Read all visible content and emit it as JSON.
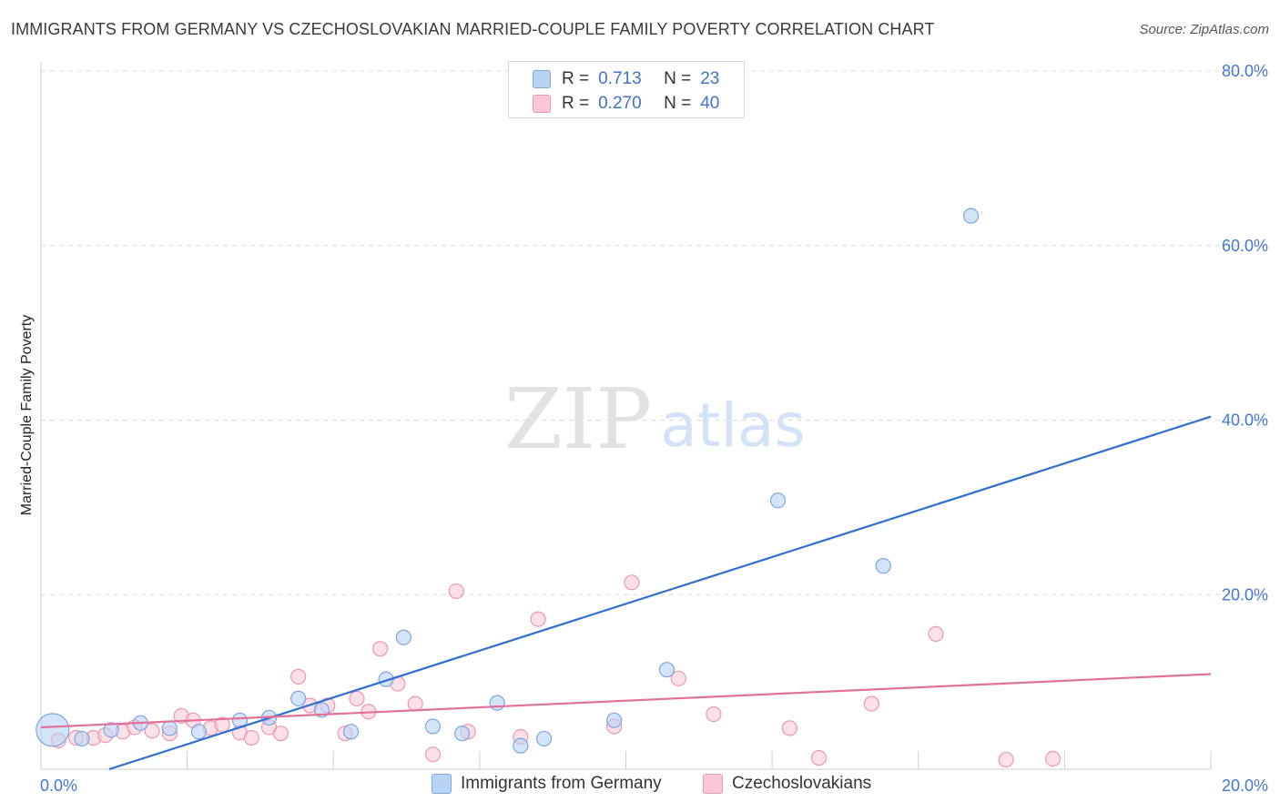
{
  "title": "IMMIGRANTS FROM GERMANY VS CZECHOSLOVAKIAN MARRIED-COUPLE FAMILY POVERTY CORRELATION CHART",
  "source": "Source: ZipAtlas.com",
  "watermark": {
    "zip": "ZIP",
    "atlas": "atlas"
  },
  "legend": {
    "rows": [
      {
        "r_label": "R =",
        "r_value": "0.713",
        "n_label": "N =",
        "n_value": "23"
      },
      {
        "r_label": "R =",
        "r_value": "0.270",
        "n_label": "N =",
        "n_value": "40"
      }
    ]
  },
  "bottom_legend": [
    "Immigrants from Germany",
    "Czechoslovakians"
  ],
  "colors": {
    "blue_fill": "#b9d3f5",
    "blue_stroke": "#7ba6e0",
    "blue_line": "#2f6fd1",
    "pink_fill": "#f9c7d6",
    "pink_stroke": "#ee96b2",
    "pink_line": "#e2719a",
    "tick_label": "#4477cc",
    "grid": "#dcdcdc"
  },
  "chart_data": {
    "type": "scatter",
    "title": "IMMIGRANTS FROM GERMANY VS CZECHOSLOVAKIAN MARRIED-COUPLE FAMILY POVERTY CORRELATION CHART",
    "xlabel": "",
    "ylabel": "Married-Couple Family Poverty",
    "xlim": [
      0,
      20
    ],
    "ylim": [
      0,
      80
    ],
    "x_tick_labels": [
      "0.0%",
      "20.0%"
    ],
    "y_ticks": [
      20,
      40,
      60,
      80
    ],
    "y_tick_labels": [
      "20.0%",
      "40.0%",
      "60.0%",
      "80.0%"
    ],
    "series": [
      {
        "name": "Immigrants from Germany",
        "r": 0.713,
        "n": 23,
        "trend": {
          "x": [
            0,
            20
          ],
          "y": [
            -2.5,
            40.4
          ]
        },
        "points": [
          {
            "x": 0.2,
            "y": 4.5,
            "big": true
          },
          {
            "x": 0.7,
            "y": 3.5
          },
          {
            "x": 1.2,
            "y": 4.5
          },
          {
            "x": 1.7,
            "y": 5.3
          },
          {
            "x": 2.2,
            "y": 4.7
          },
          {
            "x": 2.7,
            "y": 4.3
          },
          {
            "x": 3.4,
            "y": 5.6
          },
          {
            "x": 3.9,
            "y": 5.9
          },
          {
            "x": 4.4,
            "y": 8.1
          },
          {
            "x": 4.8,
            "y": 6.8
          },
          {
            "x": 5.3,
            "y": 4.3
          },
          {
            "x": 5.9,
            "y": 10.3
          },
          {
            "x": 6.2,
            "y": 15.1
          },
          {
            "x": 6.7,
            "y": 4.9
          },
          {
            "x": 7.2,
            "y": 4.1
          },
          {
            "x": 7.8,
            "y": 7.6
          },
          {
            "x": 8.2,
            "y": 2.7
          },
          {
            "x": 8.6,
            "y": 3.5
          },
          {
            "x": 9.8,
            "y": 5.6
          },
          {
            "x": 10.7,
            "y": 11.4
          },
          {
            "x": 12.6,
            "y": 30.8
          },
          {
            "x": 14.4,
            "y": 23.3
          },
          {
            "x": 15.9,
            "y": 63.4
          }
        ]
      },
      {
        "name": "Czechoslovakians",
        "r": 0.27,
        "n": 40,
        "trend": {
          "x": [
            0,
            20
          ],
          "y": [
            4.8,
            10.9
          ]
        },
        "points": [
          {
            "x": 0.3,
            "y": 3.3
          },
          {
            "x": 0.6,
            "y": 3.6
          },
          {
            "x": 0.9,
            "y": 3.6
          },
          {
            "x": 1.1,
            "y": 3.9
          },
          {
            "x": 1.4,
            "y": 4.3
          },
          {
            "x": 1.6,
            "y": 4.8
          },
          {
            "x": 1.9,
            "y": 4.4
          },
          {
            "x": 2.2,
            "y": 4.1
          },
          {
            "x": 2.4,
            "y": 6.1
          },
          {
            "x": 2.6,
            "y": 5.6
          },
          {
            "x": 2.9,
            "y": 4.7
          },
          {
            "x": 3.1,
            "y": 5.1
          },
          {
            "x": 3.4,
            "y": 4.2
          },
          {
            "x": 3.6,
            "y": 3.6
          },
          {
            "x": 3.9,
            "y": 4.8
          },
          {
            "x": 4.1,
            "y": 4.1
          },
          {
            "x": 4.4,
            "y": 10.6
          },
          {
            "x": 4.6,
            "y": 7.3
          },
          {
            "x": 4.9,
            "y": 7.3
          },
          {
            "x": 5.2,
            "y": 4.1
          },
          {
            "x": 5.4,
            "y": 8.1
          },
          {
            "x": 5.6,
            "y": 6.6
          },
          {
            "x": 5.8,
            "y": 13.8
          },
          {
            "x": 6.1,
            "y": 9.8
          },
          {
            "x": 6.4,
            "y": 7.5
          },
          {
            "x": 6.7,
            "y": 1.7
          },
          {
            "x": 7.1,
            "y": 20.4
          },
          {
            "x": 7.3,
            "y": 4.3
          },
          {
            "x": 8.2,
            "y": 3.7
          },
          {
            "x": 8.5,
            "y": 17.2
          },
          {
            "x": 9.8,
            "y": 4.9
          },
          {
            "x": 10.1,
            "y": 21.4
          },
          {
            "x": 10.9,
            "y": 10.4
          },
          {
            "x": 11.5,
            "y": 6.3
          },
          {
            "x": 12.8,
            "y": 4.7
          },
          {
            "x": 13.3,
            "y": 1.3
          },
          {
            "x": 14.2,
            "y": 7.5
          },
          {
            "x": 15.3,
            "y": 15.5
          },
          {
            "x": 16.5,
            "y": 1.1
          },
          {
            "x": 17.3,
            "y": 1.2
          }
        ]
      }
    ]
  }
}
